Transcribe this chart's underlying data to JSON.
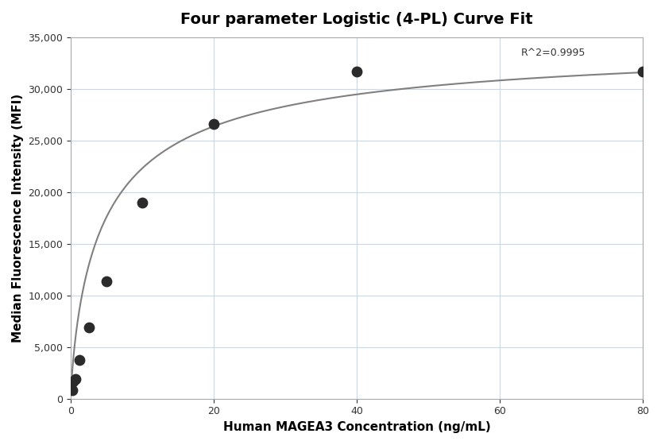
{
  "title": "Four parameter Logistic (4-PL) Curve Fit",
  "xlabel": "Human MAGEA3 Concentration (ng/mL)",
  "ylabel": "Median Fluorescence Intensity (MFI)",
  "data_points_x": [
    0.156,
    0.313,
    0.625,
    1.25,
    2.5,
    5.0,
    10.0,
    20.0,
    40.0,
    80.0
  ],
  "data_points_y": [
    800,
    1700,
    1900,
    3750,
    6900,
    11400,
    19000,
    26600,
    31700,
    31700
  ],
  "r_squared_text": "R^2=0.9995",
  "r_squared_x": 63,
  "r_squared_y": 33200,
  "xlim": [
    0,
    80
  ],
  "ylim": [
    0,
    35000
  ],
  "yticks": [
    0,
    5000,
    10000,
    15000,
    20000,
    25000,
    30000,
    35000
  ],
  "xticks": [
    0,
    20,
    40,
    60,
    80
  ],
  "dot_color": "#2b2b2b",
  "line_color": "#808080",
  "background_color": "#ffffff",
  "grid_color": "#c8d8e8",
  "title_fontsize": 14,
  "label_fontsize": 11,
  "tick_fontsize": 9
}
